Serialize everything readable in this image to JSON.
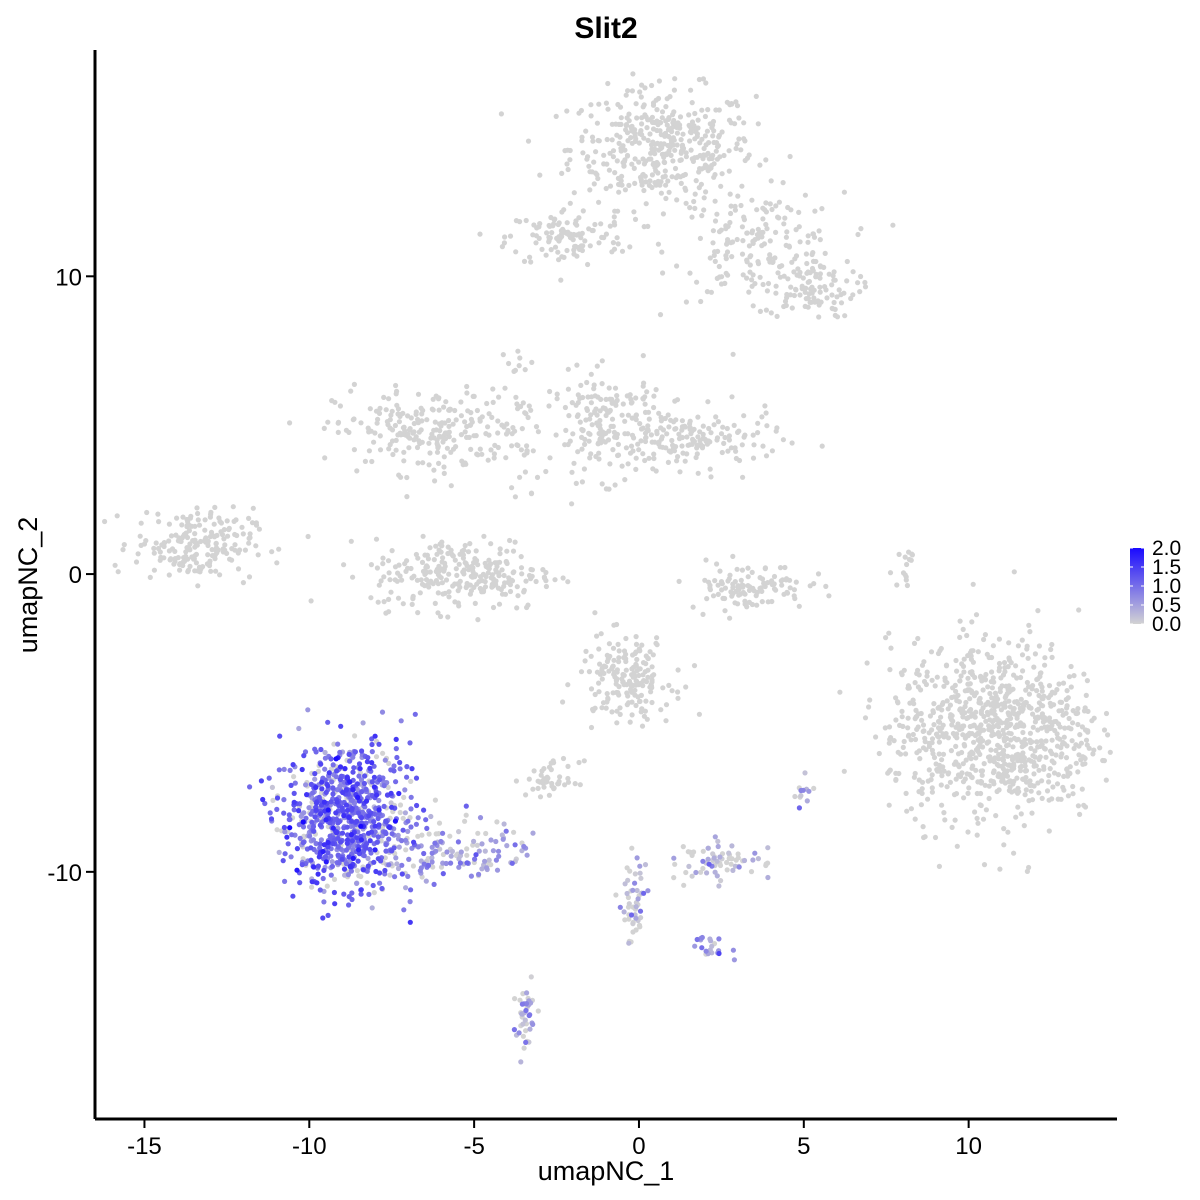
{
  "chart_data": {
    "type": "scatter",
    "title": "Slit2",
    "xlabel": "umapNC_1",
    "ylabel": "umapNC_2",
    "xlim": [
      -16.5,
      14.5
    ],
    "ylim": [
      -18.3,
      17.6
    ],
    "x_ticks": [
      -15,
      -10,
      -5,
      0,
      5,
      10
    ],
    "x_tick_labels": [
      "-15",
      "-10",
      "-5",
      "0",
      "5",
      "10"
    ],
    "y_ticks": [
      -10,
      0,
      10
    ],
    "y_tick_labels": [
      "-10",
      "0",
      "10"
    ],
    "grid": false,
    "colors": {
      "low": "#d3d3d3",
      "high": "#1a0aff"
    },
    "legend": {
      "position": "right",
      "min": 0.0,
      "max": 2.0,
      "ticks": [
        0.0,
        0.5,
        1.0,
        1.5,
        2.0
      ],
      "tick_labels": [
        "0.0",
        "0.5",
        "1.0",
        "1.5",
        "2.0"
      ]
    },
    "clusters": [
      {
        "cx": 0.7,
        "cy": 14.3,
        "sx": 1.4,
        "sy": 1.0,
        "n": 420,
        "expr": 0.0
      },
      {
        "cx": 3.6,
        "cy": 11.0,
        "sx": 1.3,
        "sy": 0.9,
        "n": 170,
        "expr": 0.0
      },
      {
        "cx": -2.2,
        "cy": 11.3,
        "sx": 0.9,
        "sy": 0.5,
        "n": 110,
        "expr": 0.0
      },
      {
        "cx": 5.2,
        "cy": 9.6,
        "sx": 0.7,
        "sy": 0.5,
        "n": 90,
        "expr": 0.0
      },
      {
        "cx": -6.4,
        "cy": 4.8,
        "sx": 1.4,
        "sy": 0.7,
        "n": 230,
        "expr": 0.0
      },
      {
        "cx": -3.6,
        "cy": 5.0,
        "sx": 0.3,
        "sy": 1.5,
        "n": 40,
        "expr": 0.0
      },
      {
        "cx": -0.9,
        "cy": 5.0,
        "sx": 0.9,
        "sy": 0.9,
        "n": 180,
        "expr": 0.0
      },
      {
        "cx": 1.7,
        "cy": 4.5,
        "sx": 1.3,
        "sy": 0.5,
        "n": 150,
        "expr": 0.0
      },
      {
        "cx": -13.5,
        "cy": 1.0,
        "sx": 0.9,
        "sy": 0.6,
        "n": 200,
        "expr": 0.0
      },
      {
        "cx": -5.3,
        "cy": 0.0,
        "sx": 1.4,
        "sy": 0.6,
        "n": 260,
        "expr": 0.0
      },
      {
        "cx": 3.3,
        "cy": -0.4,
        "sx": 0.9,
        "sy": 0.4,
        "n": 110,
        "expr": 0.0
      },
      {
        "cx": 8.1,
        "cy": 0.3,
        "sx": 0.1,
        "sy": 0.5,
        "n": 14,
        "expr": 0.0
      },
      {
        "cx": 10.8,
        "cy": -5.3,
        "sx": 1.6,
        "sy": 1.5,
        "n": 900,
        "expr": 0.0
      },
      {
        "cx": -0.4,
        "cy": -3.5,
        "sx": 0.7,
        "sy": 0.7,
        "n": 180,
        "expr": 0.0
      },
      {
        "cx": -2.6,
        "cy": -6.9,
        "sx": 0.4,
        "sy": 0.3,
        "n": 45,
        "expr": 0.0
      },
      {
        "cx": 2.5,
        "cy": -9.6,
        "sx": 0.6,
        "sy": 0.3,
        "n": 70,
        "expr": 0.15
      },
      {
        "cx": -0.2,
        "cy": -11.0,
        "sx": 0.2,
        "sy": 0.8,
        "n": 50,
        "expr": 0.1
      },
      {
        "cx": 2.2,
        "cy": -12.5,
        "sx": 0.3,
        "sy": 0.2,
        "n": 22,
        "expr": 0.6
      },
      {
        "cx": -3.5,
        "cy": -14.7,
        "sx": 0.2,
        "sy": 0.6,
        "n": 40,
        "expr": 0.5
      },
      {
        "cx": 5.0,
        "cy": -7.5,
        "sx": 0.2,
        "sy": 0.3,
        "n": 12,
        "expr": 0.4
      },
      {
        "cx": -8.8,
        "cy": -8.2,
        "sx": 1.0,
        "sy": 1.2,
        "n": 850,
        "expr": 1.05
      },
      {
        "cx": -5.6,
        "cy": -9.3,
        "sx": 1.2,
        "sy": 0.5,
        "n": 130,
        "expr": 0.45
      }
    ]
  }
}
